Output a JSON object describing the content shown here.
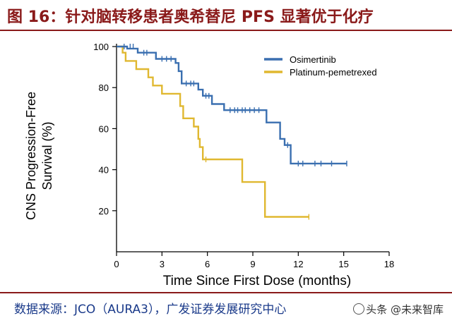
{
  "header": {
    "title": "图 16：针对脑转移患者奥希替尼 PFS 显著优于化疗"
  },
  "footer": {
    "source": "数据来源：JCO（AURA3），广发证券发展研究中心",
    "watermark": "头条 @未来智库"
  },
  "colors": {
    "osimertinib": "#3a6fb0",
    "platinum": "#e0b830",
    "brand": "#8a1a1a",
    "source_text": "#1a3a8a"
  },
  "chart_data": {
    "type": "line",
    "title": "",
    "xlabel": "Time Since First Dose (months)",
    "ylabel_lines": [
      "CNS Progression-Free",
      "Survival (%)"
    ],
    "xlim": [
      0,
      18
    ],
    "ylim": [
      0,
      100
    ],
    "xticks": [
      0,
      3,
      6,
      9,
      12,
      15,
      18
    ],
    "yticks": [
      20,
      40,
      60,
      80,
      100
    ],
    "legend_position": "top-right",
    "series": [
      {
        "name": "Osimertinib",
        "color": "#3a6fb0",
        "steps": [
          [
            0,
            100
          ],
          [
            0.7,
            100
          ],
          [
            0.7,
            99
          ],
          [
            1.4,
            99
          ],
          [
            1.4,
            97
          ],
          [
            2.6,
            97
          ],
          [
            2.6,
            94
          ],
          [
            3.9,
            94
          ],
          [
            3.9,
            92
          ],
          [
            4.1,
            92
          ],
          [
            4.1,
            88
          ],
          [
            4.3,
            88
          ],
          [
            4.3,
            82
          ],
          [
            5.4,
            82
          ],
          [
            5.4,
            79
          ],
          [
            5.7,
            79
          ],
          [
            5.7,
            76
          ],
          [
            6.3,
            76
          ],
          [
            6.3,
            72
          ],
          [
            7.1,
            72
          ],
          [
            7.1,
            69
          ],
          [
            9.9,
            69
          ],
          [
            9.9,
            63
          ],
          [
            10.8,
            63
          ],
          [
            10.8,
            55
          ],
          [
            11.1,
            55
          ],
          [
            11.1,
            52
          ],
          [
            11.5,
            52
          ],
          [
            11.5,
            43
          ],
          [
            15.2,
            43
          ]
        ],
        "censored": [
          [
            0.5,
            100
          ],
          [
            0.9,
            100
          ],
          [
            1.1,
            100
          ],
          [
            1.8,
            97
          ],
          [
            2.0,
            97
          ],
          [
            3.0,
            94
          ],
          [
            3.3,
            94
          ],
          [
            3.6,
            94
          ],
          [
            4.6,
            82
          ],
          [
            4.9,
            82
          ],
          [
            5.1,
            82
          ],
          [
            5.9,
            76
          ],
          [
            6.1,
            76
          ],
          [
            7.5,
            69
          ],
          [
            7.8,
            69
          ],
          [
            8.0,
            69
          ],
          [
            8.3,
            69
          ],
          [
            8.5,
            69
          ],
          [
            8.8,
            69
          ],
          [
            9.1,
            69
          ],
          [
            9.4,
            69
          ],
          [
            11.3,
            52
          ],
          [
            12.0,
            43
          ],
          [
            12.3,
            43
          ],
          [
            13.1,
            43
          ],
          [
            13.5,
            43
          ],
          [
            14.2,
            43
          ],
          [
            15.2,
            43
          ]
        ]
      },
      {
        "name": "Platinum-pemetrexed",
        "color": "#e0b830",
        "steps": [
          [
            0,
            100
          ],
          [
            0.4,
            100
          ],
          [
            0.4,
            97
          ],
          [
            0.6,
            97
          ],
          [
            0.6,
            93
          ],
          [
            1.3,
            93
          ],
          [
            1.3,
            89
          ],
          [
            2.1,
            89
          ],
          [
            2.1,
            85
          ],
          [
            2.4,
            85
          ],
          [
            2.4,
            81
          ],
          [
            3.0,
            81
          ],
          [
            3.0,
            77
          ],
          [
            4.2,
            77
          ],
          [
            4.2,
            71
          ],
          [
            4.4,
            71
          ],
          [
            4.4,
            65
          ],
          [
            5.1,
            65
          ],
          [
            5.1,
            61
          ],
          [
            5.4,
            61
          ],
          [
            5.4,
            55
          ],
          [
            5.5,
            55
          ],
          [
            5.5,
            51
          ],
          [
            5.7,
            51
          ],
          [
            5.7,
            45
          ],
          [
            8.3,
            45
          ],
          [
            8.3,
            34
          ],
          [
            9.8,
            34
          ],
          [
            9.8,
            17
          ],
          [
            12.7,
            17
          ]
        ],
        "censored": [
          [
            5.9,
            45
          ],
          [
            12.7,
            17
          ]
        ]
      }
    ]
  }
}
